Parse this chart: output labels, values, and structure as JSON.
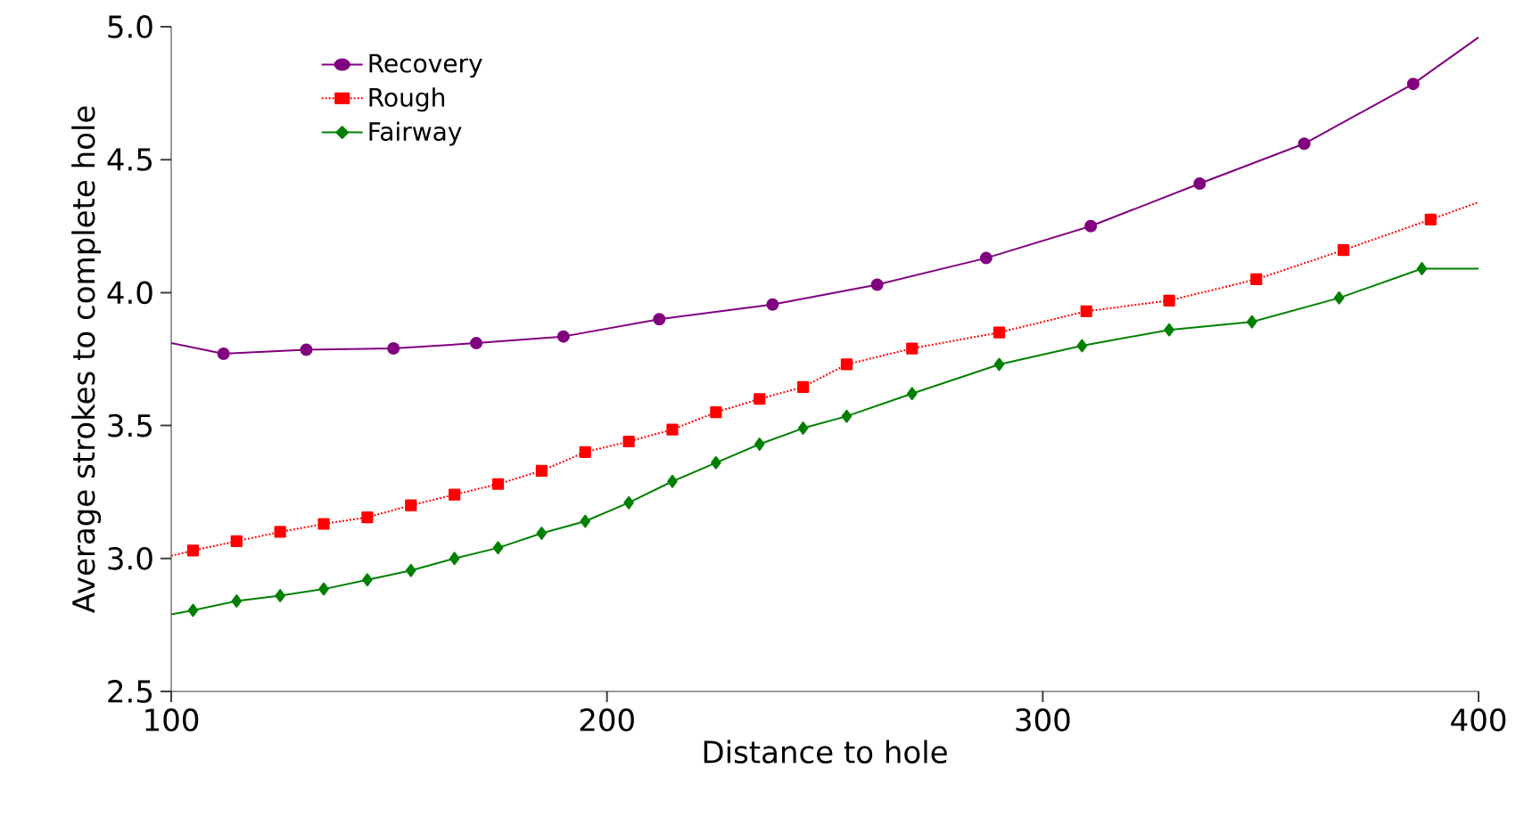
{
  "chart_data": {
    "type": "line",
    "xlabel": "Distance to hole",
    "ylabel": "Average strokes to complete hole",
    "xlim": [
      100,
      400
    ],
    "ylim": [
      2.5,
      5.0
    ],
    "xticks": [
      100,
      200,
      300,
      400
    ],
    "yticks": [
      2.5,
      {
        "value": 3.0,
        "label": "3.0"
      },
      3.5,
      {
        "value": 4.0,
        "label": "4.0"
      },
      4.5,
      {
        "value": 5.0,
        "label": "5.0"
      }
    ],
    "grid": false,
    "legend": "top left",
    "series": [
      {
        "name": "Recovery",
        "color": "#800080",
        "marker": "circle",
        "line_style": "solid",
        "x": [
          100,
          112,
          131,
          151,
          170,
          190,
          212,
          238,
          262,
          287,
          311,
          336,
          360,
          385,
          400
        ],
        "values": [
          3.81,
          3.77,
          3.785,
          3.79,
          3.81,
          3.835,
          3.9,
          3.955,
          4.03,
          4.13,
          4.25,
          4.41,
          4.56,
          4.785,
          4.96
        ]
      },
      {
        "name": "Rough",
        "color": "#ff0000",
        "marker": "square",
        "line_style": "dotted",
        "x": [
          100,
          105,
          115,
          125,
          135,
          145,
          155,
          165,
          175,
          185,
          195,
          205,
          215,
          225,
          235,
          245,
          255,
          270,
          290,
          310,
          329,
          349,
          369,
          389,
          400
        ],
        "values": [
          3.01,
          3.03,
          3.065,
          3.1,
          3.13,
          3.155,
          3.2,
          3.24,
          3.28,
          3.33,
          3.4,
          3.44,
          3.485,
          3.55,
          3.6,
          3.645,
          3.73,
          3.79,
          3.85,
          3.93,
          3.97,
          4.05,
          4.16,
          4.275,
          4.34
        ]
      },
      {
        "name": "Fairway",
        "color": "#008000",
        "marker": "diamond",
        "line_style": "solid",
        "x": [
          100,
          105,
          115,
          125,
          135,
          145,
          155,
          165,
          175,
          185,
          195,
          205,
          215,
          225,
          235,
          245,
          255,
          270,
          290,
          309,
          329,
          348,
          368,
          387,
          400
        ],
        "values": [
          2.79,
          2.805,
          2.84,
          2.86,
          2.885,
          2.92,
          2.955,
          3.0,
          3.04,
          3.095,
          3.14,
          3.21,
          3.29,
          3.36,
          3.43,
          3.49,
          3.535,
          3.62,
          3.73,
          3.8,
          3.86,
          3.89,
          3.98,
          4.09,
          4.09
        ]
      }
    ]
  }
}
